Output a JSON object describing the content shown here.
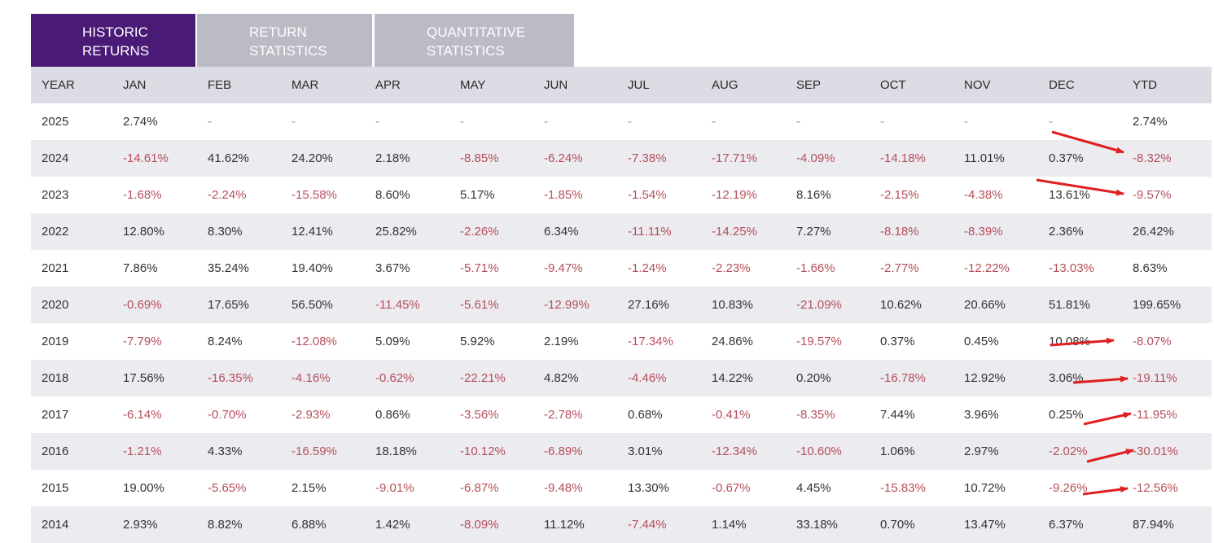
{
  "tabs": [
    {
      "line1": "HISTORIC",
      "line2": "RETURNS",
      "active": true
    },
    {
      "line1": "RETURN",
      "line2": "STATISTICS",
      "active": false
    },
    {
      "line1": "QUANTITATIVE",
      "line2": "STATISTICS",
      "active": false
    }
  ],
  "colors": {
    "active_tab": "#4a1a77",
    "inactive_tab": "#bbbbc5",
    "header_row": "#dcdce4",
    "stripe_row": "#ebebf0",
    "negative_text": "#b64f5a",
    "annotation_arrow": "#e02020"
  },
  "table": {
    "headers": [
      "YEAR",
      "JAN",
      "FEB",
      "MAR",
      "APR",
      "MAY",
      "JUN",
      "JUL",
      "AUG",
      "SEP",
      "OCT",
      "NOV",
      "DEC",
      "YTD"
    ],
    "rows": [
      [
        "2025",
        "2.74%",
        "-",
        "-",
        "-",
        "-",
        "-",
        "-",
        "-",
        "-",
        "-",
        "-",
        "-",
        "2.74%"
      ],
      [
        "2024",
        "-14.61%",
        "41.62%",
        "24.20%",
        "2.18%",
        "-8.85%",
        "-6.24%",
        "-7.38%",
        "-17.71%",
        "-4.09%",
        "-14.18%",
        "11.01%",
        "0.37%",
        "-8.32%"
      ],
      [
        "2023",
        "-1.68%",
        "-2.24%",
        "-15.58%",
        "8.60%",
        "5.17%",
        "-1.85%",
        "-1.54%",
        "-12.19%",
        "8.16%",
        "-2.15%",
        "-4.38%",
        "13.61%",
        "-9.57%"
      ],
      [
        "2022",
        "12.80%",
        "8.30%",
        "12.41%",
        "25.82%",
        "-2.26%",
        "6.34%",
        "-11.11%",
        "-14.25%",
        "7.27%",
        "-8.18%",
        "-8.39%",
        "2.36%",
        "26.42%"
      ],
      [
        "2021",
        "7.86%",
        "35.24%",
        "19.40%",
        "3.67%",
        "-5.71%",
        "-9.47%",
        "-1.24%",
        "-2.23%",
        "-1.66%",
        "-2.77%",
        "-12.22%",
        "-13.03%",
        "8.63%"
      ],
      [
        "2020",
        "-0.69%",
        "17.65%",
        "56.50%",
        "-11.45%",
        "-5.61%",
        "-12.99%",
        "27.16%",
        "10.83%",
        "-21.09%",
        "10.62%",
        "20.66%",
        "51.81%",
        "199.65%"
      ],
      [
        "2019",
        "-7.79%",
        "8.24%",
        "-12.08%",
        "5.09%",
        "5.92%",
        "2.19%",
        "-17.34%",
        "24.86%",
        "-19.57%",
        "0.37%",
        "0.45%",
        "10.08%",
        "-8.07%"
      ],
      [
        "2018",
        "17.56%",
        "-16.35%",
        "-4.16%",
        "-0.62%",
        "-22.21%",
        "4.82%",
        "-4.46%",
        "14.22%",
        "0.20%",
        "-16.78%",
        "12.92%",
        "3.06%",
        "-19.11%"
      ],
      [
        "2017",
        "-6.14%",
        "-0.70%",
        "-2.93%",
        "0.86%",
        "-3.56%",
        "-2.78%",
        "0.68%",
        "-0.41%",
        "-8.35%",
        "7.44%",
        "3.96%",
        "0.25%",
        "-11.95%"
      ],
      [
        "2016",
        "-1.21%",
        "4.33%",
        "-16.59%",
        "18.18%",
        "-10.12%",
        "-6.89%",
        "3.01%",
        "-12.34%",
        "-10.60%",
        "1.06%",
        "2.97%",
        "-2.02%",
        "-30.01%"
      ],
      [
        "2015",
        "19.00%",
        "-5.65%",
        "2.15%",
        "-9.01%",
        "-6.87%",
        "-9.48%",
        "13.30%",
        "-0.67%",
        "4.45%",
        "-15.83%",
        "10.72%",
        "-9.26%",
        "-12.56%"
      ],
      [
        "2014",
        "2.93%",
        "8.82%",
        "6.88%",
        "1.42%",
        "-8.09%",
        "11.12%",
        "-7.44%",
        "1.14%",
        "33.18%",
        "0.70%",
        "13.47%",
        "6.37%",
        "87.94%"
      ]
    ]
  }
}
